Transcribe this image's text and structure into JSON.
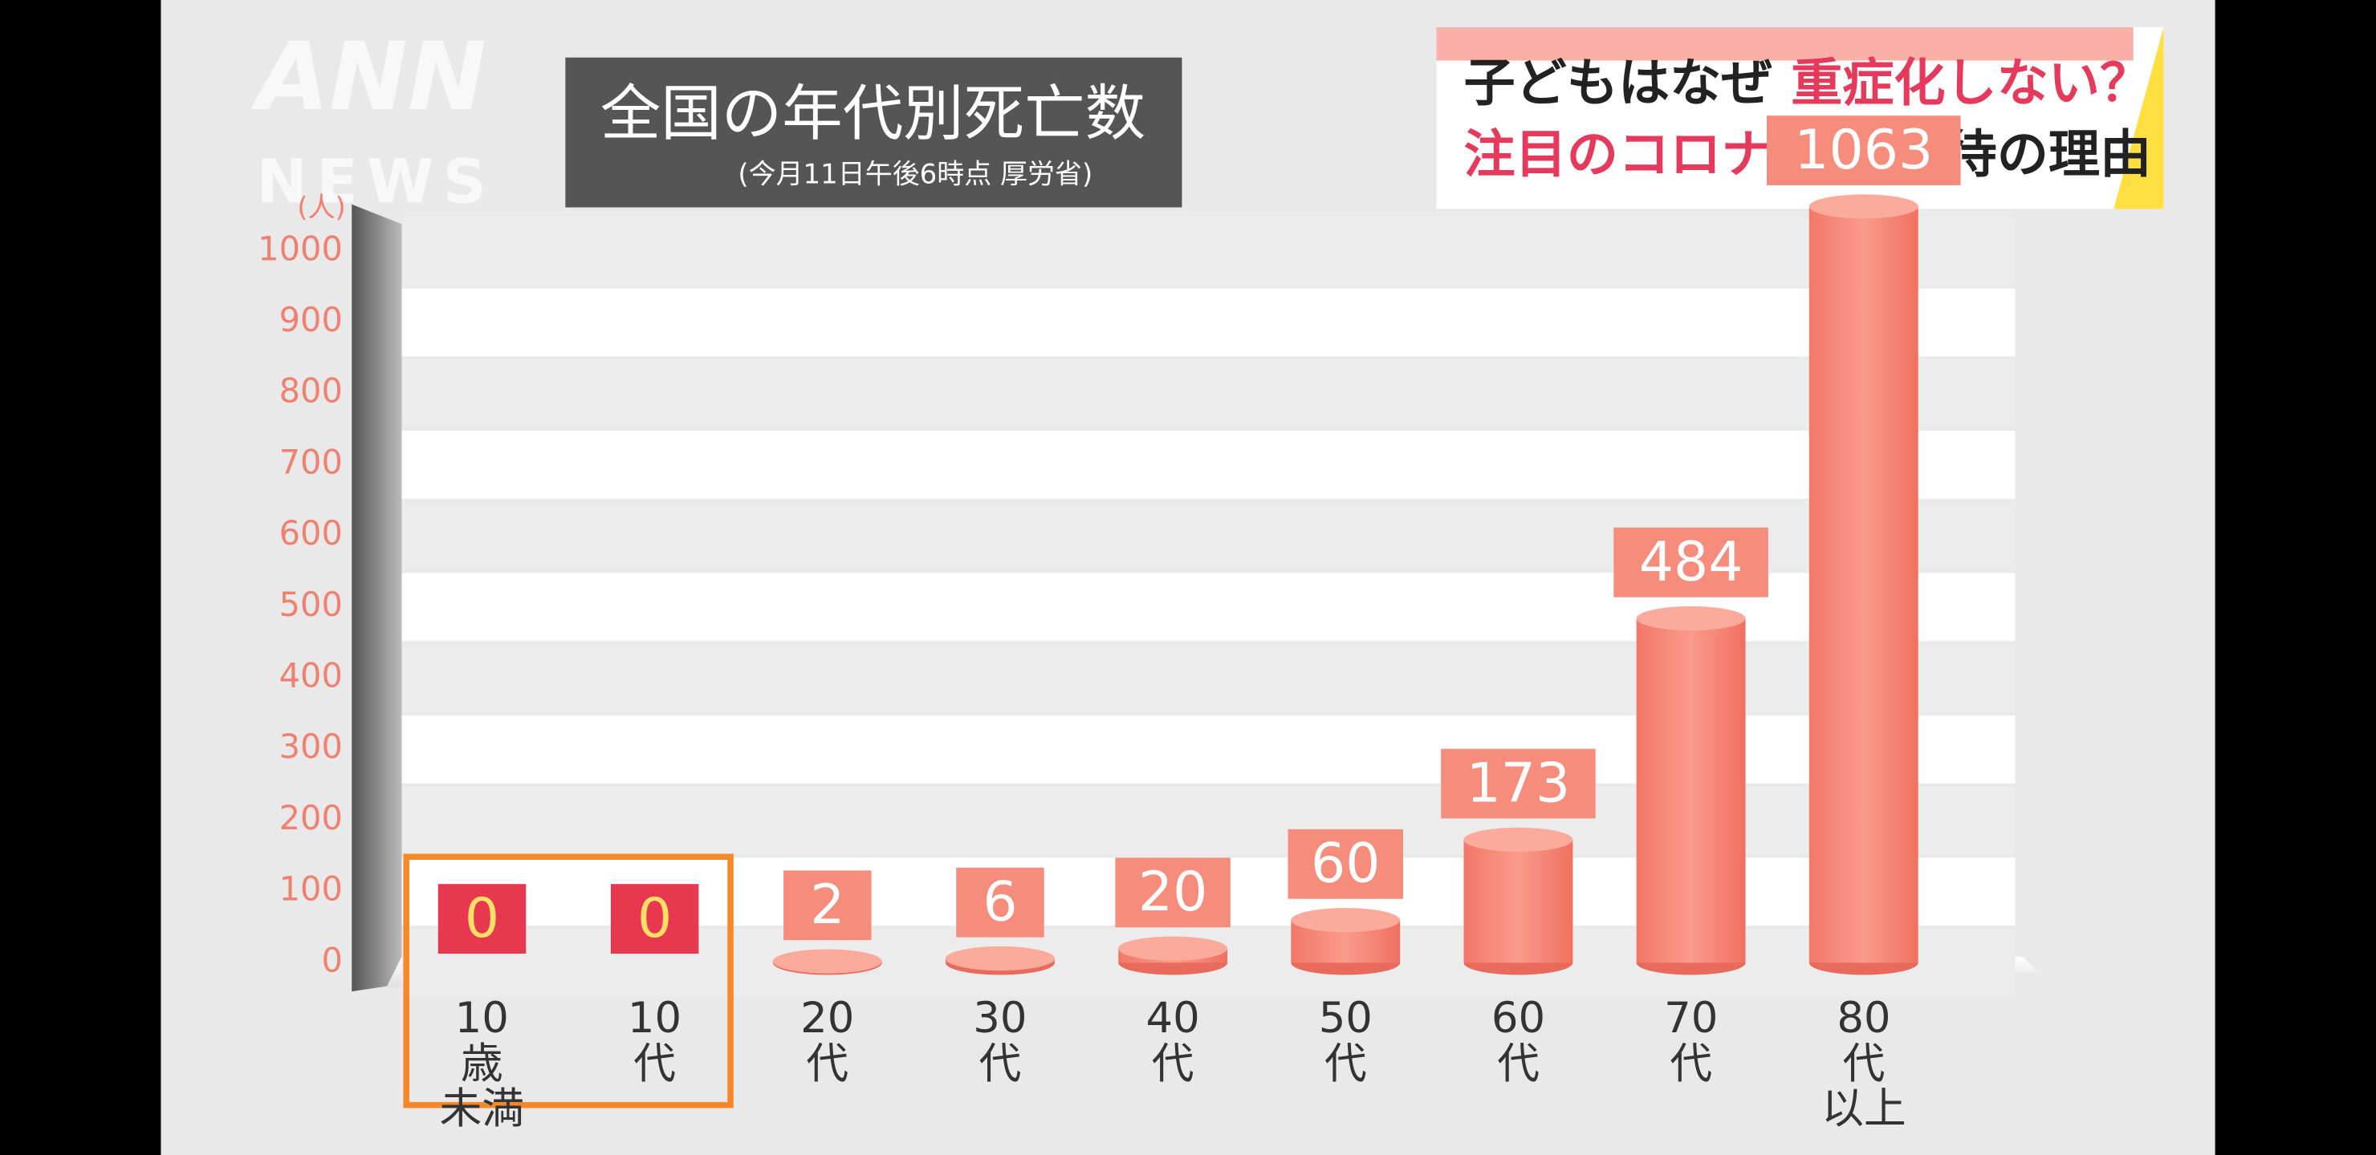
{
  "logo": {
    "line1": "ANN",
    "line2": "NEWS"
  },
  "headline": {
    "line1": [
      {
        "text": "子どもはなぜ",
        "color": "#222222"
      },
      {
        "text": "重症化しない？",
        "color": "#e63a5c"
      }
    ],
    "line2": [
      {
        "text": "注目のコロナ研究",
        "color": "#e63a5c"
      },
      {
        "text": "期待の理由",
        "color": "#222222"
      }
    ]
  },
  "chart_data": {
    "type": "bar",
    "title": "全国の年代別死亡数",
    "subtitle": "(今月11日午後6時点 厚労省)",
    "y_label": "(人)",
    "categories": [
      "10歳\n未満",
      "10代",
      "20代",
      "30代",
      "40代",
      "50代",
      "60代",
      "70代",
      "80代\n以上"
    ],
    "values": [
      0,
      0,
      2,
      6,
      20,
      60,
      173,
      484,
      1063
    ],
    "color": "#f68c7c",
    "ylim": [
      0,
      1100
    ],
    "yticks": [
      0,
      100,
      200,
      300,
      400,
      500,
      600,
      700,
      800,
      900,
      1000
    ],
    "grid": true,
    "highlight": {
      "indices": [
        0,
        1
      ],
      "frame_color": "#f5892a",
      "label_color": "#e8384f",
      "text_color": "#ffe066"
    }
  }
}
